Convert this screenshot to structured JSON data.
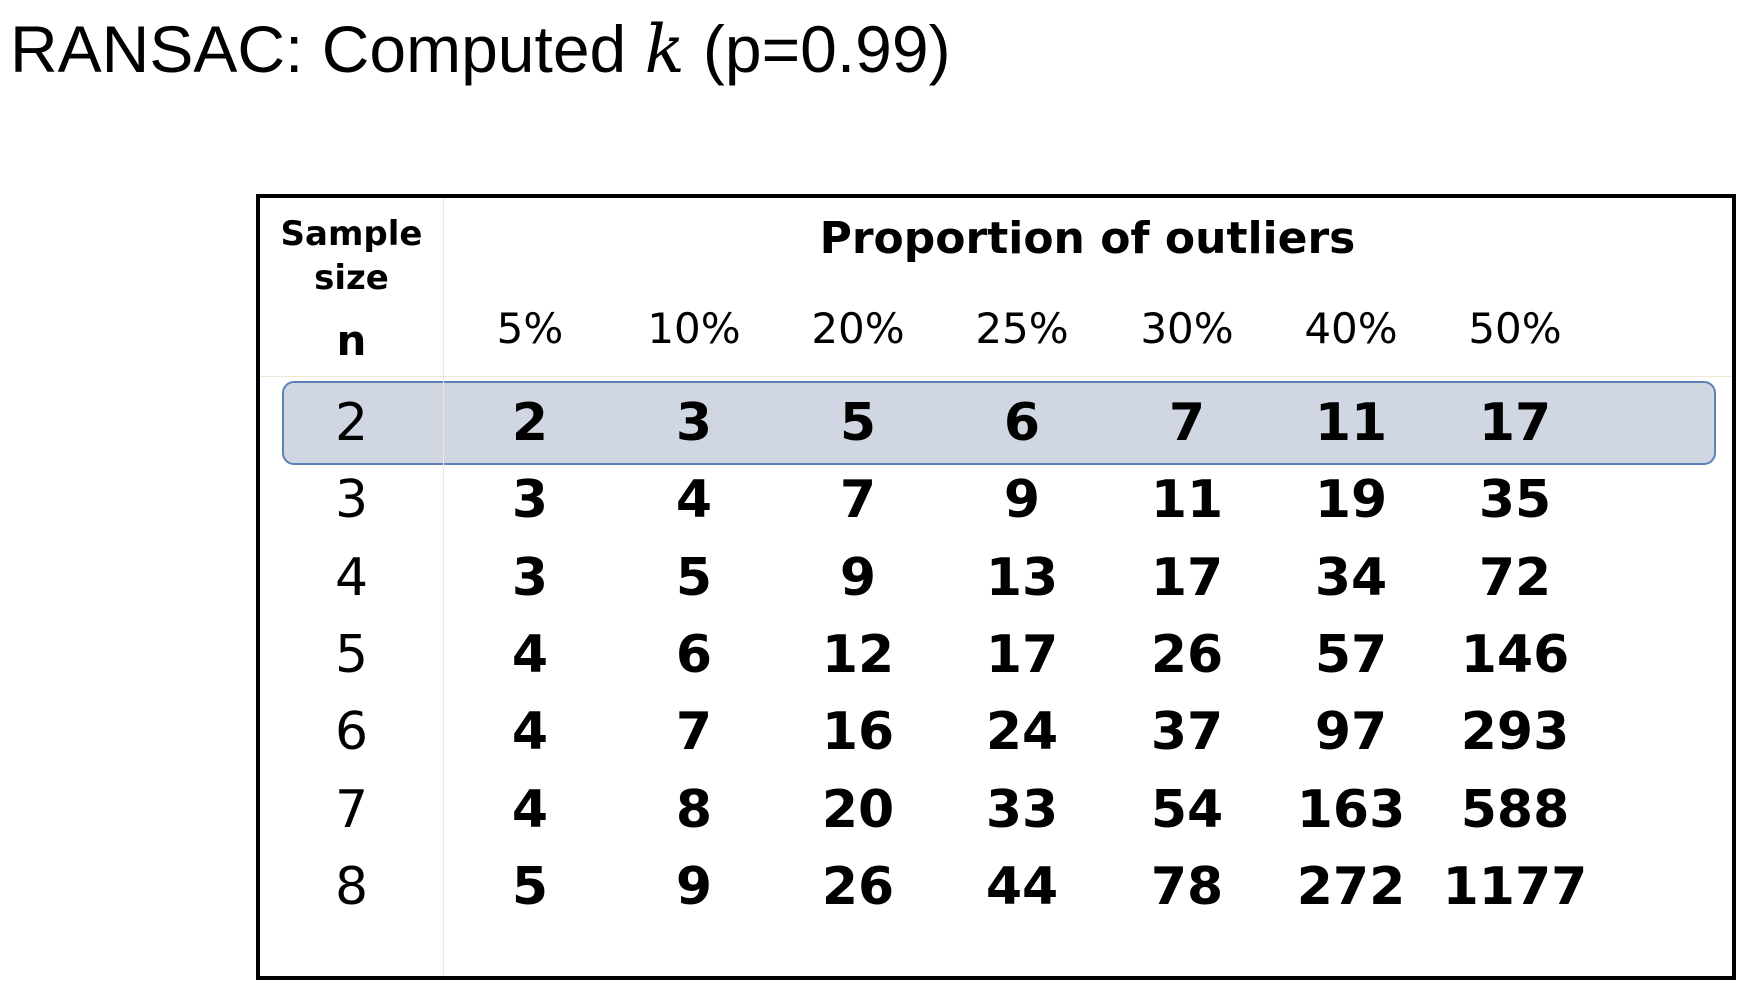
{
  "title": {
    "prefix": "RANSAC: Computed ",
    "variable": "k",
    "suffix": " (p=0.99)"
  },
  "table": {
    "sample_size_header": "Sample size",
    "n_header": "n",
    "proportion_header": "Proportion of outliers",
    "columns": [
      "5%",
      "10%",
      "20%",
      "25%",
      "30%",
      "40%",
      "50%"
    ],
    "rows": [
      {
        "n": "2",
        "values": [
          "2",
          "3",
          "5",
          "6",
          "7",
          "11",
          "17"
        ]
      },
      {
        "n": "3",
        "values": [
          "3",
          "4",
          "7",
          "9",
          "11",
          "19",
          "35"
        ]
      },
      {
        "n": "4",
        "values": [
          "3",
          "5",
          "9",
          "13",
          "17",
          "34",
          "72"
        ]
      },
      {
        "n": "5",
        "values": [
          "4",
          "6",
          "12",
          "17",
          "26",
          "57",
          "146"
        ]
      },
      {
        "n": "6",
        "values": [
          "4",
          "7",
          "16",
          "24",
          "37",
          "97",
          "293"
        ]
      },
      {
        "n": "7",
        "values": [
          "4",
          "8",
          "20",
          "33",
          "54",
          "163",
          "588"
        ]
      },
      {
        "n": "8",
        "values": [
          "5",
          "9",
          "26",
          "44",
          "78",
          "272",
          "1177"
        ]
      }
    ],
    "highlighted_row": 0,
    "colors": {
      "highlight_fill": "#d0d6e2",
      "highlight_border": "#5d82b8",
      "rule": "#ece8d4"
    }
  }
}
